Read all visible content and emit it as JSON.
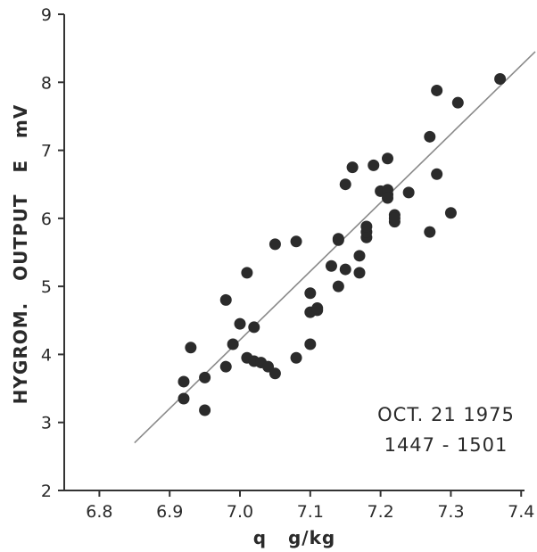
{
  "chart_data": {
    "type": "scatter",
    "xlabel": "q   g/kg",
    "ylabel": "HYGROM.   OUTPUT   E   mV",
    "xlim": [
      6.75,
      7.42
    ],
    "ylim": [
      2,
      9
    ],
    "xticks": [
      "6.8",
      "6.9",
      "7.0",
      "7.1",
      "7.2",
      "7.3",
      "7.4"
    ],
    "yticks": [
      "2",
      "3",
      "4",
      "5",
      "6",
      "7",
      "8",
      "9"
    ],
    "grid": false,
    "annotations": [
      "OCT. 21 1975",
      "1447 - 1501"
    ],
    "fit_line": {
      "x": [
        6.85,
        7.42
      ],
      "y": [
        2.7,
        8.45
      ]
    },
    "series": [
      {
        "x": [
          6.92,
          6.92,
          6.95,
          6.95,
          6.93,
          6.98,
          6.98,
          6.99,
          7.0,
          7.01,
          7.01,
          7.02,
          7.02,
          7.03,
          7.04,
          7.05,
          7.05,
          7.08,
          7.08,
          7.1,
          7.1,
          7.1,
          7.11,
          7.11,
          7.13,
          7.14,
          7.14,
          7.14,
          7.15,
          7.15,
          7.16,
          7.17,
          7.17,
          7.18,
          7.18,
          7.18,
          7.19,
          7.2,
          7.21,
          7.21,
          7.21,
          7.22,
          7.22,
          7.22,
          7.24,
          7.27,
          7.27,
          7.28,
          7.28,
          7.3,
          7.31,
          7.37,
          7.21
        ],
        "y": [
          3.35,
          3.6,
          3.18,
          3.66,
          4.1,
          3.82,
          4.8,
          4.15,
          4.45,
          3.95,
          5.2,
          3.9,
          4.4,
          3.88,
          3.82,
          3.72,
          5.62,
          5.66,
          3.95,
          4.9,
          4.15,
          4.62,
          4.65,
          4.68,
          5.3,
          5.7,
          5.0,
          5.68,
          5.25,
          6.5,
          6.75,
          5.45,
          5.2,
          5.72,
          5.8,
          5.88,
          6.78,
          6.4,
          6.35,
          6.42,
          6.88,
          5.95,
          6.05,
          6.0,
          6.38,
          5.8,
          7.2,
          7.88,
          6.65,
          6.08,
          7.7,
          8.05,
          6.3
        ]
      }
    ]
  },
  "colors": {
    "marker": "#2b2b2b",
    "line": "#8a8a8a",
    "axis": "#333333"
  }
}
